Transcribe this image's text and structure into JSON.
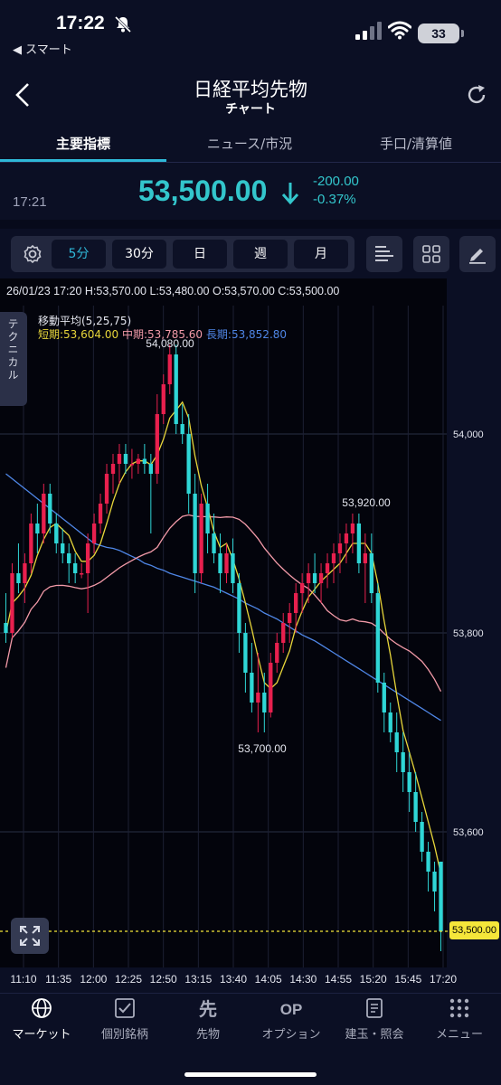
{
  "status_bar": {
    "time": "17:22",
    "back_app": "◀ スマート",
    "battery": "33"
  },
  "header": {
    "title": "日経平均先物",
    "subtitle": "チャート"
  },
  "tabs": [
    {
      "label": "主要指標",
      "active": true
    },
    {
      "label": "ニュース/市況",
      "active": false
    },
    {
      "label": "手口/清算値",
      "active": false
    }
  ],
  "price_panel": {
    "time": "17:21",
    "price": "53,500.00",
    "direction": "down",
    "change": "-200.00",
    "change_pct": "-0.37%"
  },
  "toolbar": {
    "intervals": [
      {
        "label": "5分",
        "active": true
      },
      {
        "label": "30分",
        "active": false
      },
      {
        "label": "日",
        "active": false
      },
      {
        "label": "週",
        "active": false
      },
      {
        "label": "月",
        "active": false
      }
    ],
    "icons": [
      "gear-icon",
      "list-icon",
      "grid-icon",
      "pencil-icon"
    ]
  },
  "chart": {
    "ohlc_info": "26/01/23 17:20  H:53,570.00  L:53,480.00  O:53,570.00  C:53,500.00",
    "ma_title": "移動平均(5,25,75)",
    "ma_short": "短期:53,604.00",
    "ma_mid": "中期:53,785.60",
    "ma_long": "長期:53,852.80",
    "technical_label": "テクニカル",
    "last_price_tag": "53,500.00",
    "colors": {
      "up": "#e8204e",
      "down": "#2fd6d6",
      "ma_short": "#e8d63a",
      "ma_mid": "#f29aa8",
      "ma_long": "#4f86e6",
      "last_price": "#f5e63a"
    }
  },
  "chart_data": {
    "type": "candlestick",
    "title": "",
    "y_ticks": [
      "54,000",
      "53,800",
      "53,600"
    ],
    "ylim": [
      53480,
      54100
    ],
    "x_ticks": [
      "11:10",
      "11:35",
      "12:00",
      "12:25",
      "12:50",
      "13:15",
      "13:40",
      "14:05",
      "14:30",
      "14:55",
      "15:20",
      "15:45",
      "17:20"
    ],
    "annotations": [
      {
        "label": "54,080.00",
        "value": 54080
      },
      {
        "label": "53,700.00",
        "value": 53700
      },
      {
        "label": "53,920.00",
        "value": 53920
      }
    ],
    "last_price": 53500,
    "ohlc": [
      [
        53810,
        53840,
        53790,
        53800
      ],
      [
        53800,
        53870,
        53795,
        53860
      ],
      [
        53860,
        53890,
        53840,
        53850
      ],
      [
        53850,
        53880,
        53830,
        53870
      ],
      [
        53870,
        53920,
        53860,
        53910
      ],
      [
        53910,
        53930,
        53880,
        53900
      ],
      [
        53900,
        53950,
        53890,
        53940
      ],
      [
        53940,
        53950,
        53900,
        53910
      ],
      [
        53910,
        53920,
        53880,
        53890
      ],
      [
        53890,
        53905,
        53870,
        53880
      ],
      [
        53880,
        53890,
        53850,
        53870
      ],
      [
        53870,
        53880,
        53850,
        53860
      ],
      [
        53860,
        53870,
        53855,
        53860
      ],
      [
        53860,
        53900,
        53820,
        53890
      ],
      [
        53890,
        53920,
        53880,
        53910
      ],
      [
        53910,
        53940,
        53900,
        53930
      ],
      [
        53930,
        53970,
        53920,
        53960
      ],
      [
        53960,
        53980,
        53940,
        53970
      ],
      [
        53970,
        53990,
        53950,
        53980
      ],
      [
        53980,
        53990,
        53960,
        53970
      ],
      [
        53970,
        53985,
        53955,
        53970
      ],
      [
        53970,
        53980,
        53960,
        53975
      ],
      [
        53975,
        53990,
        53960,
        53970
      ],
      [
        53970,
        53980,
        53900,
        53960
      ],
      [
        53960,
        54040,
        53950,
        54020
      ],
      [
        54020,
        54060,
        54010,
        54050
      ],
      [
        54050,
        54090,
        54040,
        54080
      ],
      [
        54080,
        54090,
        54000,
        54010
      ],
      [
        54010,
        54030,
        53990,
        54000
      ],
      [
        54000,
        54020,
        53920,
        53940
      ],
      [
        53940,
        53960,
        53840,
        53860
      ],
      [
        53860,
        53940,
        53850,
        53930
      ],
      [
        53930,
        53950,
        53880,
        53900
      ],
      [
        53900,
        53920,
        53870,
        53880
      ],
      [
        53880,
        53900,
        53840,
        53860
      ],
      [
        53860,
        53890,
        53850,
        53880
      ],
      [
        53880,
        53895,
        53840,
        53850
      ],
      [
        53850,
        53860,
        53780,
        53800
      ],
      [
        53800,
        53810,
        53740,
        53760
      ],
      [
        53760,
        53790,
        53720,
        53730
      ],
      [
        53730,
        53780,
        53700,
        53740
      ],
      [
        53740,
        53760,
        53700,
        53720
      ],
      [
        53720,
        53780,
        53715,
        53770
      ],
      [
        53770,
        53800,
        53760,
        53790
      ],
      [
        53790,
        53820,
        53780,
        53810
      ],
      [
        53810,
        53830,
        53790,
        53820
      ],
      [
        53820,
        53850,
        53800,
        53840
      ],
      [
        53840,
        53860,
        53820,
        53850
      ],
      [
        53850,
        53870,
        53830,
        53860
      ],
      [
        53860,
        53880,
        53840,
        53850
      ],
      [
        53850,
        53870,
        53830,
        53860
      ],
      [
        53860,
        53880,
        53845,
        53870
      ],
      [
        53870,
        53890,
        53850,
        53880
      ],
      [
        53880,
        53900,
        53860,
        53890
      ],
      [
        53890,
        53910,
        53870,
        53900
      ],
      [
        53900,
        53920,
        53880,
        53910
      ],
      [
        53910,
        53920,
        53860,
        53870
      ],
      [
        53870,
        53900,
        53830,
        53880
      ],
      [
        53880,
        53900,
        53830,
        53840
      ],
      [
        53840,
        53850,
        53740,
        53750
      ],
      [
        53750,
        53760,
        53700,
        53720
      ],
      [
        53720,
        53730,
        53690,
        53700
      ],
      [
        53700,
        53720,
        53660,
        53680
      ],
      [
        53680,
        53700,
        53640,
        53660
      ],
      [
        53660,
        53680,
        53620,
        53640
      ],
      [
        53640,
        53660,
        53600,
        53610
      ],
      [
        53610,
        53620,
        53570,
        53580
      ],
      [
        53580,
        53590,
        53540,
        53560
      ],
      [
        53560,
        53570,
        53520,
        53540
      ],
      [
        53570,
        53570,
        53480,
        53500
      ]
    ]
  },
  "bottom_nav": [
    {
      "label": "マーケット",
      "icon": "globe-icon",
      "active": true
    },
    {
      "label": "個別銘柄",
      "icon": "checkbox-icon",
      "active": false
    },
    {
      "label": "先物",
      "icon": "futures-icon",
      "active": false
    },
    {
      "label": "オプション",
      "icon": "op-icon",
      "active": false
    },
    {
      "label": "建玉・照会",
      "icon": "document-icon",
      "active": false
    },
    {
      "label": "メニュー",
      "icon": "menu-dots-icon",
      "active": false
    }
  ]
}
